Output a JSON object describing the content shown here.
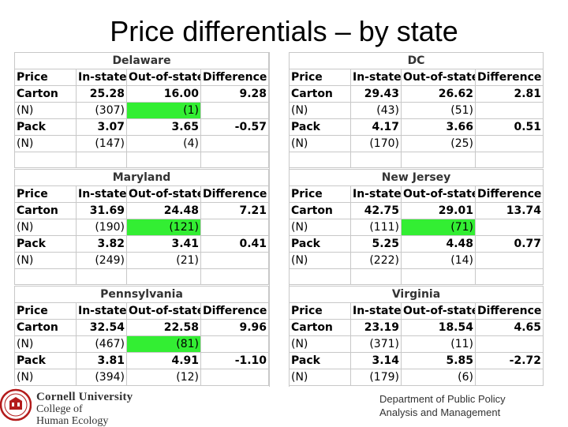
{
  "title": "Price differentials – by state",
  "columns": [
    "Price",
    "In-state",
    "Out-of-state",
    "Difference"
  ],
  "highlight_color": "#33ee33",
  "panels": [
    {
      "state": "Delaware",
      "carton": {
        "label": "Carton",
        "in": "25.28",
        "out": "16.00",
        "diff": "9.28"
      },
      "carton_n": {
        "label": "(N)",
        "in": "(307)",
        "out": "(1)",
        "out_highlight": true
      },
      "pack": {
        "label": "Pack",
        "in": "3.07",
        "out": "3.65",
        "diff": "-0.57"
      },
      "pack_n": {
        "label": "(N)",
        "in": "(147)",
        "out": "(4)"
      }
    },
    {
      "state": "DC",
      "carton": {
        "label": "Carton",
        "in": "29.43",
        "out": "26.62",
        "diff": "2.81"
      },
      "carton_n": {
        "label": "(N)",
        "in": "(43)",
        "out": "(51)"
      },
      "pack": {
        "label": "Pack",
        "in": "4.17",
        "out": "3.66",
        "diff": "0.51"
      },
      "pack_n": {
        "label": "(N)",
        "in": "(170)",
        "out": "(25)"
      }
    },
    {
      "state": "Maryland",
      "carton": {
        "label": "Carton",
        "in": "31.69",
        "out": "24.48",
        "diff": "7.21"
      },
      "carton_n": {
        "label": "(N)",
        "in": "(190)",
        "out": "(121)",
        "out_highlight": true
      },
      "pack": {
        "label": "Pack",
        "in": "3.82",
        "out": "3.41",
        "diff": "0.41"
      },
      "pack_n": {
        "label": "(N)",
        "in": "(249)",
        "out": "(21)"
      }
    },
    {
      "state": "New Jersey",
      "carton": {
        "label": "Carton",
        "in": "42.75",
        "out": "29.01",
        "diff": "13.74"
      },
      "carton_n": {
        "label": "(N)",
        "in": "(111)",
        "out": "(71)",
        "out_highlight": true
      },
      "pack": {
        "label": "Pack",
        "in": "5.25",
        "out": "4.48",
        "diff": "0.77"
      },
      "pack_n": {
        "label": "(N)",
        "in": "(222)",
        "out": "(14)"
      }
    },
    {
      "state": "Pennsylvania",
      "carton": {
        "label": "Carton",
        "in": "32.54",
        "out": "22.58",
        "diff": "9.96"
      },
      "carton_n": {
        "label": "(N)",
        "in": "(467)",
        "out": "(81)",
        "out_highlight": true
      },
      "pack": {
        "label": "Pack",
        "in": "3.81",
        "out": "4.91",
        "diff": "-1.10"
      },
      "pack_n": {
        "label": "(N)",
        "in": "(394)",
        "out": "(12)"
      }
    },
    {
      "state": "Virginia",
      "carton": {
        "label": "Carton",
        "in": "23.19",
        "out": "18.54",
        "diff": "4.65"
      },
      "carton_n": {
        "label": "(N)",
        "in": "(371)",
        "out": "(11)"
      },
      "pack": {
        "label": "Pack",
        "in": "3.14",
        "out": "5.85",
        "diff": "-2.72"
      },
      "pack_n": {
        "label": "(N)",
        "in": "(179)",
        "out": "(6)"
      }
    }
  ],
  "footer": {
    "university": "Cornell University",
    "college_line1": "College of",
    "college_line2": "Human Ecology",
    "dept_line1": "Department of Public Policy",
    "dept_line2": "Analysis and Management",
    "logo": "cornell-seal-icon",
    "logo_color": "#b31b1b"
  }
}
